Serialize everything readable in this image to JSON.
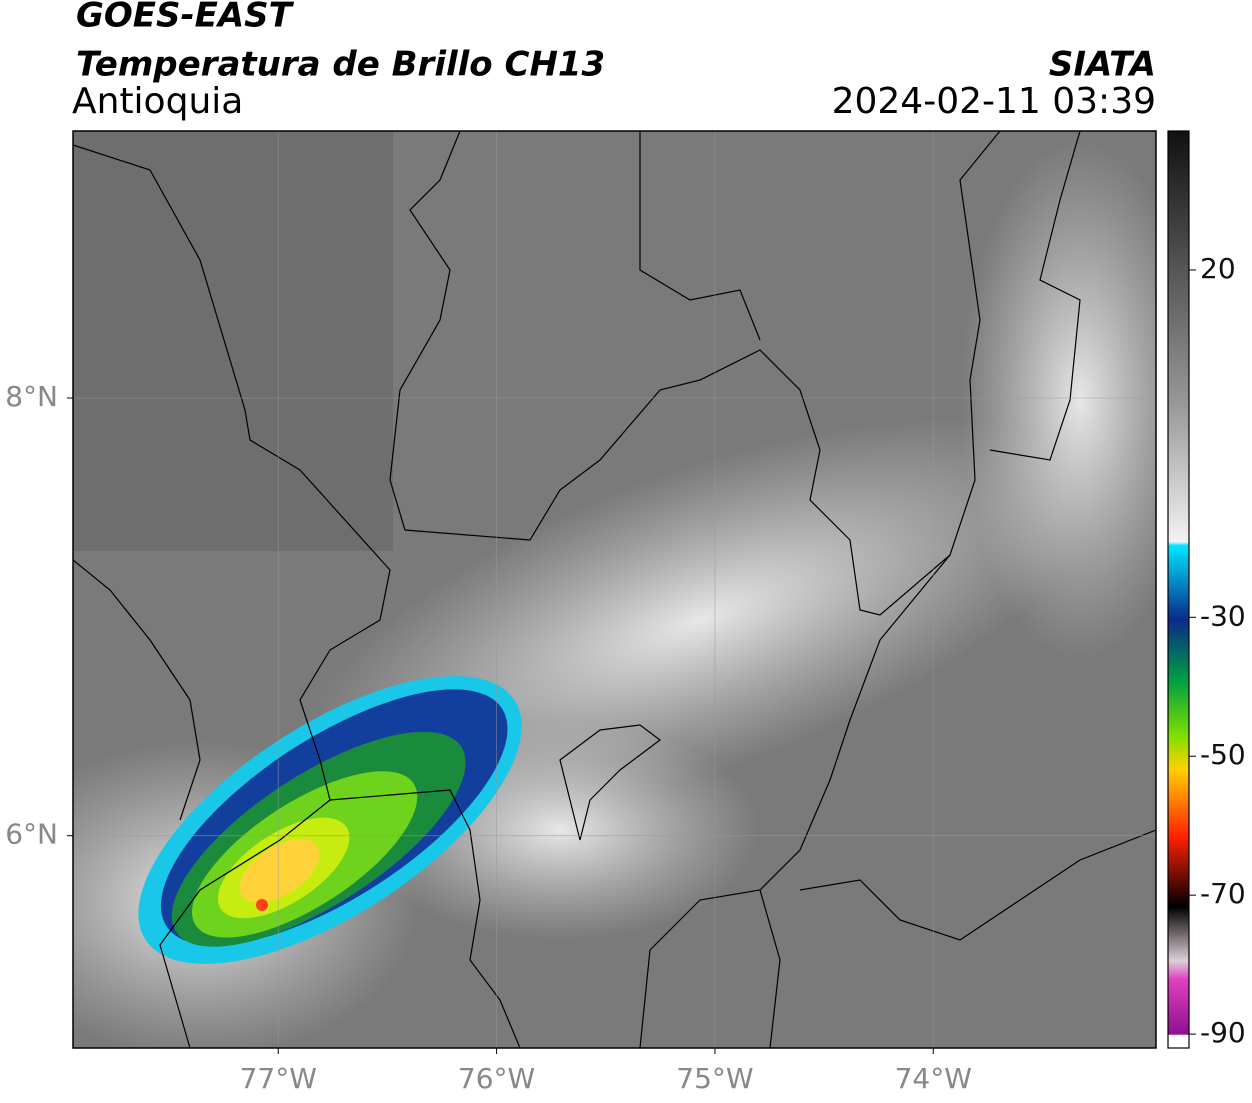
{
  "header": {
    "title": "GOES-EAST",
    "subtitle": "Temperatura de Brillo CH13",
    "region": "Antioquia",
    "source": "SIATA",
    "datetime": "2024-02-11 03:39"
  },
  "map": {
    "xlim": [
      -77.94,
      -72.98
    ],
    "ylim": [
      5.03,
      9.22
    ],
    "xticks": [
      {
        "value": -77,
        "label": "77°W"
      },
      {
        "value": -76,
        "label": "76°W"
      },
      {
        "value": -75,
        "label": "75°W"
      },
      {
        "value": -74,
        "label": "74°W"
      }
    ],
    "yticks": [
      {
        "value": 8,
        "label": "8°N"
      },
      {
        "value": 6,
        "label": "6°N"
      }
    ]
  },
  "colorbar": {
    "lim": [
      -92,
      40
    ],
    "ticks": [
      20,
      -30,
      -50,
      -70,
      -90
    ]
  }
}
